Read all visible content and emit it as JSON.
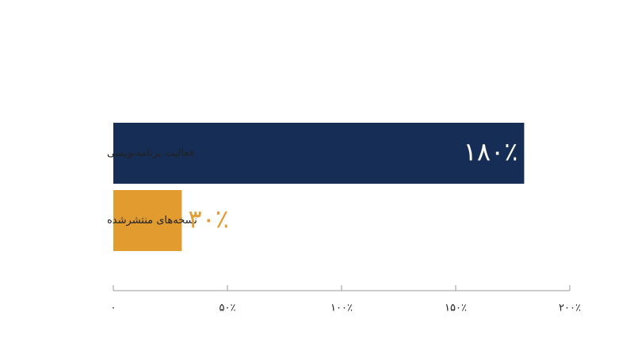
{
  "chart_data": {
    "type": "hbar",
    "categories": [
      "فعالیت برنامه‌نویسی",
      "نسخه‌های منتشرشده"
    ],
    "values": [
      180,
      30
    ],
    "value_labels": [
      "۱۸۰٪",
      "۳۰٪"
    ],
    "colors": [
      "#162d55",
      "#e29b2e"
    ],
    "xlim": [
      0,
      200
    ],
    "xticks": [
      {
        "value": 0,
        "label": "۰"
      },
      {
        "value": 50,
        "label": "۵۰٪"
      },
      {
        "value": 100,
        "label": "۱۰۰٪"
      },
      {
        "value": 150,
        "label": "۱۵۰٪"
      },
      {
        "value": 200,
        "label": "۲۰۰٪"
      }
    ]
  }
}
